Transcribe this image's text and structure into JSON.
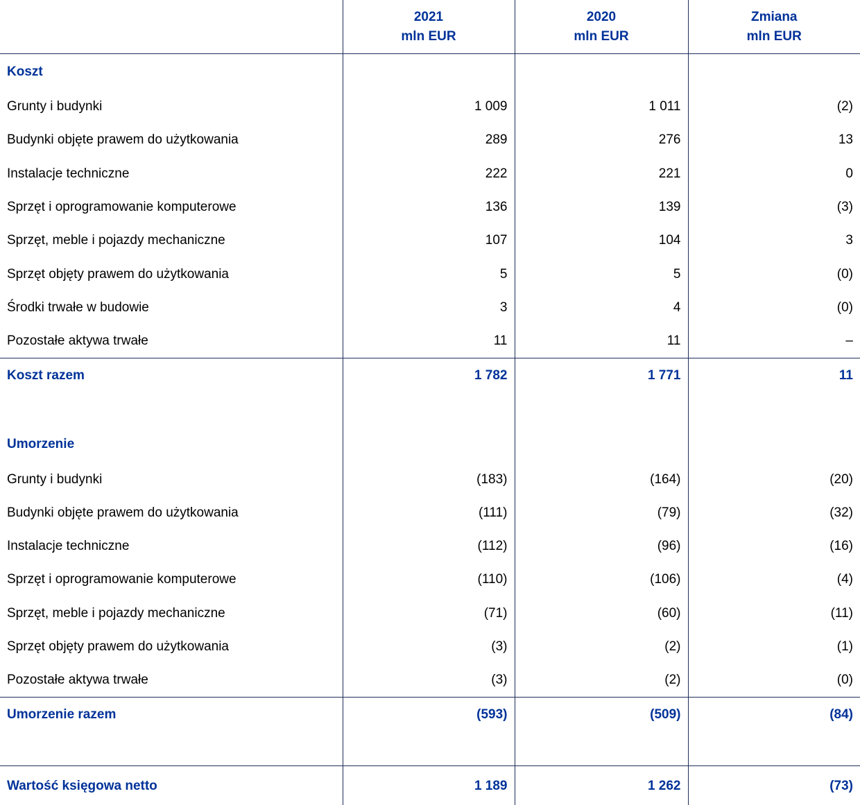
{
  "header": {
    "columns": [
      {
        "year": "2021",
        "unit": "mln EUR"
      },
      {
        "year": "2020",
        "unit": "mln EUR"
      },
      {
        "year": "Zmiana",
        "unit": "mln EUR"
      }
    ]
  },
  "sections": [
    {
      "title": "Koszt",
      "rows": [
        [
          "Grunty i budynki",
          "1 009",
          "1 011",
          "(2)"
        ],
        [
          "Budynki objęte prawem do użytkowania",
          "289",
          "276",
          "13"
        ],
        [
          "Instalacje techniczne",
          "222",
          "221",
          "0"
        ],
        [
          "Sprzęt i oprogramowanie komputerowe",
          "136",
          "139",
          "(3)"
        ],
        [
          "Sprzęt, meble i pojazdy mechaniczne",
          "107",
          "104",
          "3"
        ],
        [
          "Sprzęt objęty prawem do użytkowania",
          "5",
          "5",
          "(0)"
        ],
        [
          "Środki trwałe w budowie",
          "3",
          "4",
          "(0)"
        ],
        [
          "Pozostałe aktywa trwałe",
          "11",
          "11",
          "–"
        ]
      ],
      "total": [
        "Koszt razem",
        "1 782",
        "1 771",
        "11"
      ]
    },
    {
      "title": "Umorzenie",
      "rows": [
        [
          "Grunty i budynki",
          "(183)",
          "(164)",
          "(20)"
        ],
        [
          "Budynki objęte prawem do użytkowania",
          "(111)",
          "(79)",
          "(32)"
        ],
        [
          "Instalacje techniczne",
          "(112)",
          "(96)",
          "(16)"
        ],
        [
          "Sprzęt i oprogramowanie komputerowe",
          "(110)",
          "(106)",
          "(4)"
        ],
        [
          "Sprzęt, meble i pojazdy mechaniczne",
          "(71)",
          "(60)",
          "(11)"
        ],
        [
          "Sprzęt objęty prawem do użytkowania",
          "(3)",
          "(2)",
          "(1)"
        ],
        [
          "Pozostałe aktywa trwałe",
          "(3)",
          "(2)",
          "(0)"
        ]
      ],
      "total": [
        "Umorzenie razem",
        "(593)",
        "(509)",
        "(84)"
      ]
    }
  ],
  "net": [
    "Wartość księgowa netto",
    "1 189",
    "1 262",
    "(73)"
  ]
}
